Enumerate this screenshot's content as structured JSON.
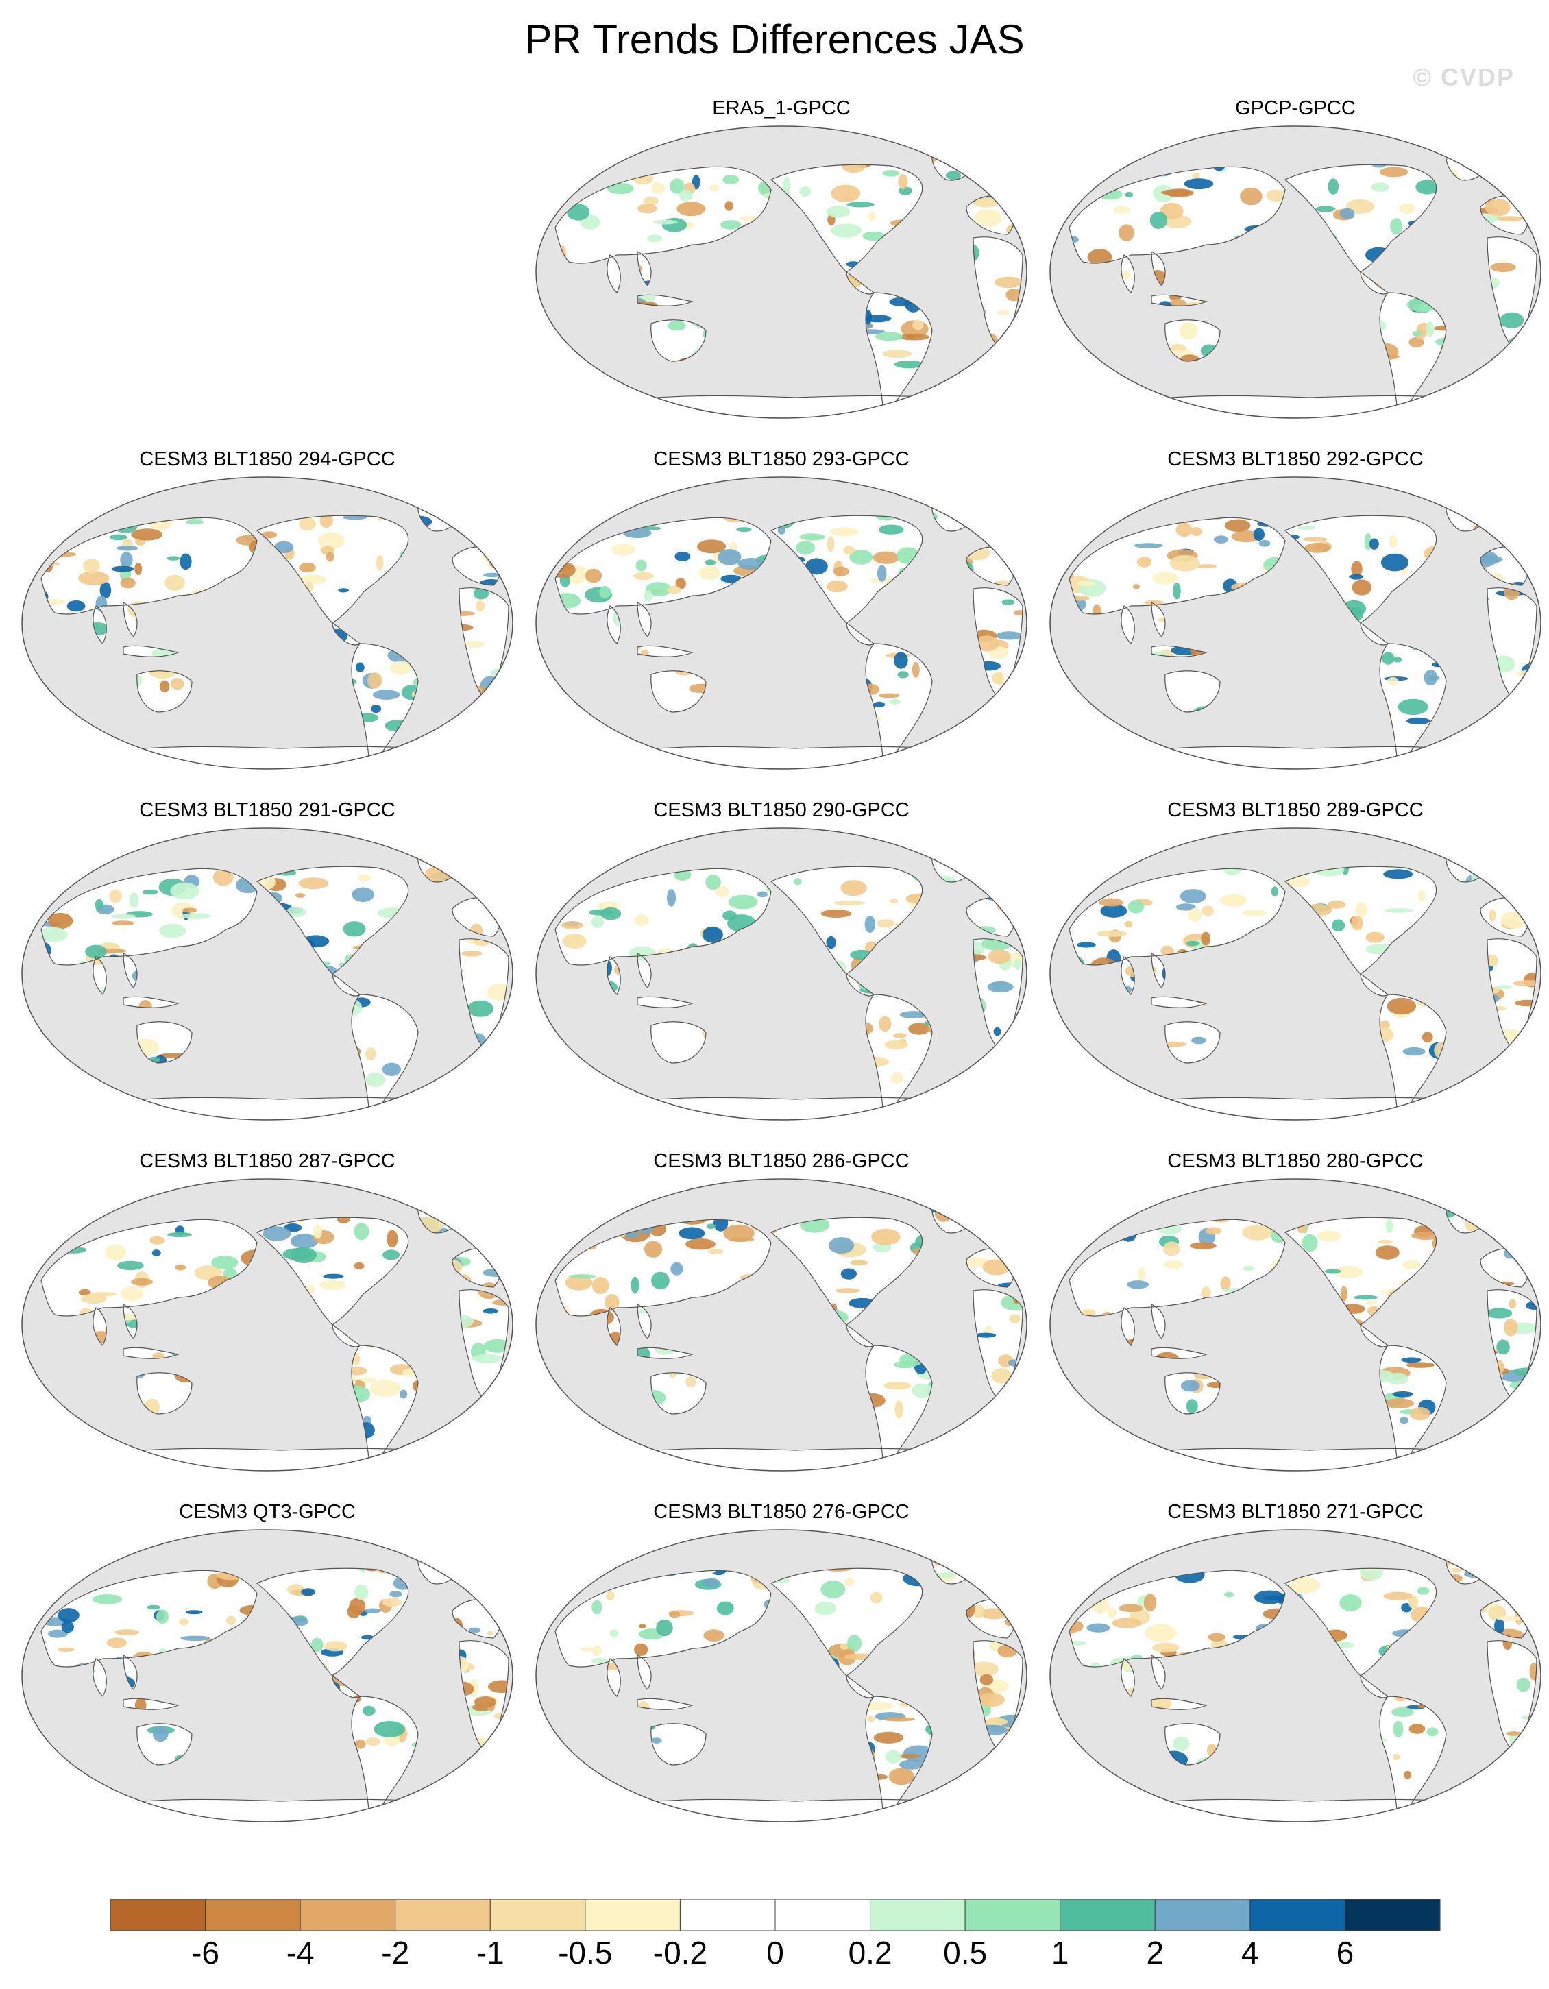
{
  "figure": {
    "title": "PR Trends Differences JAS",
    "watermark": "© CVDP"
  },
  "panels": [
    {
      "slot": 1,
      "title": "ERA5_1-GPCC"
    },
    {
      "slot": 2,
      "title": "GPCP-GPCC"
    },
    {
      "slot": 3,
      "title": "CESM3 BLT1850 294-GPCC"
    },
    {
      "slot": 4,
      "title": "CESM3 BLT1850 293-GPCC"
    },
    {
      "slot": 5,
      "title": "CESM3 BLT1850 292-GPCC"
    },
    {
      "slot": 6,
      "title": "CESM3 BLT1850 291-GPCC"
    },
    {
      "slot": 7,
      "title": "CESM3 BLT1850 290-GPCC"
    },
    {
      "slot": 8,
      "title": "CESM3 BLT1850 289-GPCC"
    },
    {
      "slot": 9,
      "title": "CESM3 BLT1850 287-GPCC"
    },
    {
      "slot": 10,
      "title": "CESM3 BLT1850 286-GPCC"
    },
    {
      "slot": 11,
      "title": "CESM3 BLT1850 280-GPCC"
    },
    {
      "slot": 12,
      "title": "CESM3 QT3-GPCC"
    },
    {
      "slot": 13,
      "title": "CESM3 BLT1850 276-GPCC"
    },
    {
      "slot": 14,
      "title": "CESM3 BLT1850 271-GPCC"
    }
  ],
  "map_colors": {
    "ocean": "#e4e4e4",
    "land": "#ffffff",
    "coast": "#555555"
  },
  "colorbar": {
    "colors": [
      "#b8672a",
      "#cc8743",
      "#e0a767",
      "#f2c98c",
      "#f6dfa5",
      "#fcf2c3",
      "#ffffff",
      "#ffffff",
      "#c8f5d2",
      "#95e6b4",
      "#50be9e",
      "#72a9c9",
      "#0c66a7",
      "#04355d"
    ],
    "labels": [
      "-6",
      "-4",
      "-2",
      "-1",
      "-0.5",
      "-0.2",
      "0",
      "0.2",
      "0.5",
      "1",
      "2",
      "4",
      "6"
    ]
  }
}
